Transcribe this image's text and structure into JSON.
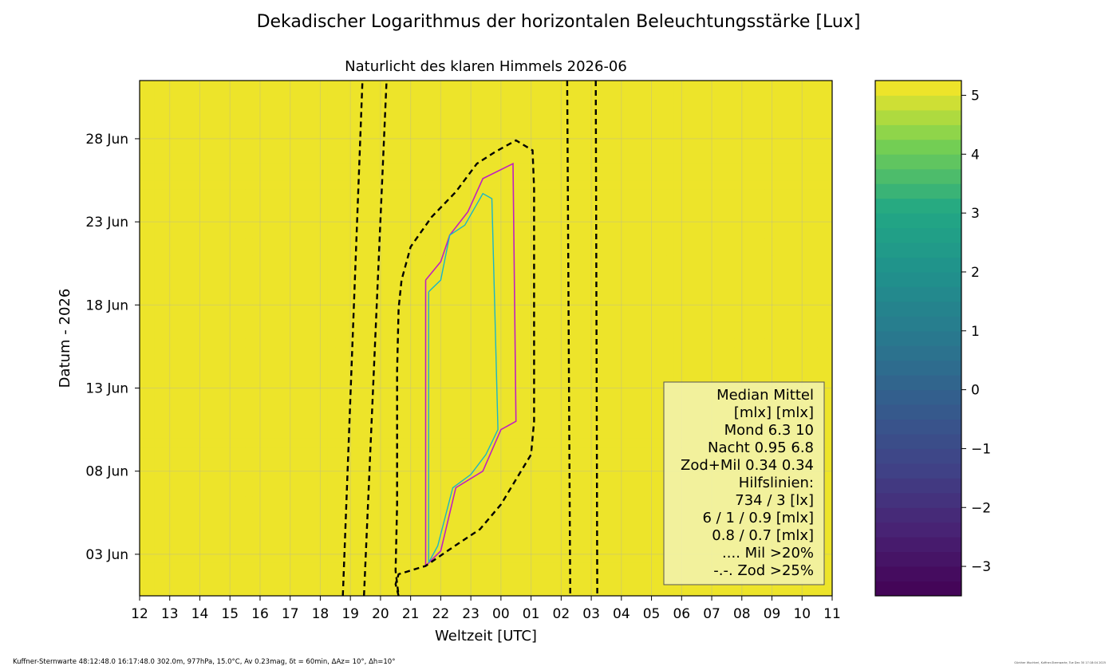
{
  "figure": {
    "suptitle": "Dekadischer Logarithmus der horizontalen Beleuchtungsstärke [Lux]",
    "footer": "Kuffner-Sternwarte 48:12:48.0 16:17:48.0 302.0m,  977hPa, 15.0°C, Av 0.23mag, δt = 60min, ΔAz= 10°, Δh=10°",
    "credit": "Günther Wuchterl, Kuffner-Sternwarte, Tue Dec 30 17:18:04 2025"
  },
  "chart_data": {
    "type": "heatmap",
    "title": "Naturlicht des klaren Himmels 2026-06",
    "xlabel": "Weltzeit [UTC]",
    "ylabel": "Datum - 2026",
    "x_tick_labels": [
      "12",
      "13",
      "14",
      "15",
      "16",
      "17",
      "18",
      "19",
      "20",
      "21",
      "22",
      "23",
      "00",
      "01",
      "02",
      "03",
      "04",
      "05",
      "06",
      "07",
      "08",
      "09",
      "10",
      "11"
    ],
    "x_range_hours": [
      12,
      35
    ],
    "y_tick_labels": [
      "03 Jun",
      "08 Jun",
      "13 Jun",
      "18 Jun",
      "23 Jun",
      "28 Jun"
    ],
    "y_tick_days": [
      3,
      8,
      13,
      18,
      23,
      28
    ],
    "y_range_days": [
      0.5,
      31.5
    ],
    "grid": true,
    "colormap": "viridis",
    "colorbar": {
      "range": [
        -3.5,
        5.25
      ],
      "ticks": [
        5,
        4,
        3,
        2,
        1,
        0,
        -1,
        -2,
        -3
      ],
      "tick_labels": [
        "5",
        "4",
        "3",
        "2",
        "1",
        "0",
        "−1",
        "−2",
        "−3"
      ]
    },
    "contour_dashed_outer_left": [
      [
        18.75,
        0.5
      ],
      [
        19.4,
        31.5
      ]
    ],
    "contour_dashed_inner_left": [
      [
        19.45,
        0.5
      ],
      [
        20.2,
        31.5
      ]
    ],
    "contour_dashed_inner_right": [
      [
        26.2,
        31.5
      ],
      [
        26.3,
        0.5
      ]
    ],
    "contour_dashed_outer_right": [
      [
        27.15,
        31.5
      ],
      [
        27.2,
        0.5
      ]
    ],
    "contour_dashed_core": [
      [
        20.6,
        0.5
      ],
      [
        20.5,
        1.2
      ],
      [
        20.6,
        1.8
      ],
      [
        21.5,
        2.3
      ],
      [
        22.3,
        3.3
      ],
      [
        23.3,
        4.5
      ],
      [
        24.0,
        6.0
      ],
      [
        24.6,
        7.8
      ],
      [
        25.0,
        9.0
      ],
      [
        25.1,
        11.0
      ],
      [
        25.1,
        25.0
      ],
      [
        25.05,
        27.3
      ],
      [
        24.5,
        27.9
      ],
      [
        23.8,
        27.2
      ],
      [
        23.2,
        26.5
      ],
      [
        22.5,
        24.8
      ],
      [
        21.7,
        23.3
      ],
      [
        21.0,
        21.5
      ],
      [
        20.7,
        19.5
      ],
      [
        20.6,
        17.8
      ],
      [
        20.55,
        14.0
      ],
      [
        20.55,
        6.0
      ],
      [
        20.5,
        2.0
      ],
      [
        20.6,
        0.5
      ]
    ],
    "contour_magenta": [
      [
        21.5,
        19.5
      ],
      [
        22.0,
        20.6
      ],
      [
        22.3,
        22.2
      ],
      [
        22.9,
        23.6
      ],
      [
        23.4,
        25.6
      ],
      [
        24.4,
        26.5
      ],
      [
        24.5,
        11.0
      ],
      [
        24.0,
        10.5
      ],
      [
        23.4,
        8.0
      ],
      [
        22.5,
        7.0
      ],
      [
        22.0,
        3.2
      ],
      [
        21.5,
        2.3
      ],
      [
        21.5,
        19.5
      ]
    ],
    "contour_cyan": [
      [
        21.6,
        18.8
      ],
      [
        22.0,
        19.5
      ],
      [
        22.3,
        22.2
      ],
      [
        22.8,
        22.8
      ],
      [
        23.4,
        24.7
      ],
      [
        23.7,
        24.4
      ],
      [
        23.9,
        10.5
      ],
      [
        23.5,
        9.0
      ],
      [
        23.0,
        7.8
      ],
      [
        22.4,
        7.0
      ],
      [
        21.9,
        3.5
      ],
      [
        21.6,
        2.5
      ],
      [
        21.6,
        18.8
      ]
    ],
    "legend": [
      "Median Mittel",
      "[mlx]  [mlx]",
      "Mond  6.3  10",
      "Nacht 0.95 6.8",
      "Zod+Mil 0.34  0.34",
      "Hilfslinien:",
      "734 / 3  [lx]",
      "6 /  1 / 0.9 [mlx]",
      "0.8 / 0.7 [mlx]",
      ".... Mil >20%",
      "-.-. Zod >25%"
    ],
    "legend_position": "lower-right"
  }
}
